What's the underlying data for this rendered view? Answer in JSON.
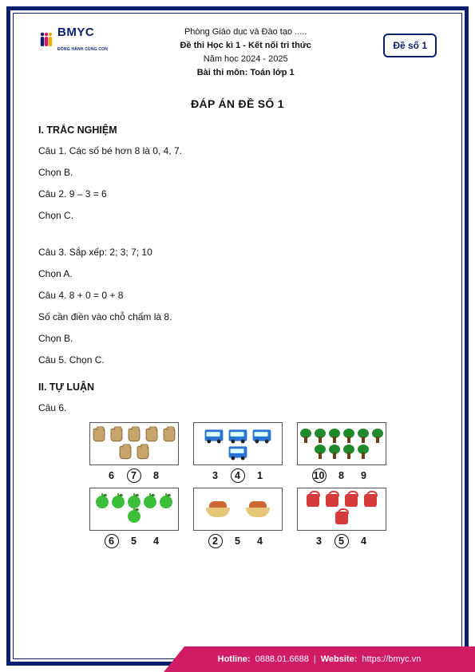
{
  "logo": {
    "brand": "BMYC",
    "tagline": "ĐỒNG HÀNH CÙNG CON"
  },
  "header": {
    "line1": "Phòng Giáo dục và Đào tạo .....",
    "line2": "Đề thi Học kì 1 - Kết nối tri thức",
    "line3": "Năm học 2024 - 2025",
    "line4": "Bài thi môn: Toán lớp 1"
  },
  "badge": "Đề số 1",
  "title": "ĐÁP ÁN ĐỀ SỐ 1",
  "section1": "I. TRẮC NGHIỆM",
  "q1": "Câu 1. Các số bé hơn 8 là 0, 4, 7.",
  "a1": "Chọn B.",
  "q2": "Câu 2. 9 – 3 = 6",
  "a2": "Chọn C.",
  "q3": "Câu 3. Sắp xếp: 2; 3; 7; 10",
  "a3": "Chọn A.",
  "q4": "Câu 4. 8 + 0 = 0 + 8",
  "q4b": "Số cần điền vào chỗ chấm là 8.",
  "a4": "Chọn B.",
  "q5": "Câu 5. Chọn C.",
  "section2": "II. TỰ LUẬN",
  "q6": "Câu 6.",
  "grid": {
    "cells": [
      {
        "kind": "sack",
        "count": 7,
        "nums": [
          "6",
          "7",
          "8"
        ],
        "answer_index": 1
      },
      {
        "kind": "van",
        "count": 4,
        "nums": [
          "3",
          "4",
          "1"
        ],
        "answer_index": 1
      },
      {
        "kind": "tree",
        "count": 10,
        "nums": [
          "10",
          "8",
          "9"
        ],
        "answer_index": 0
      },
      {
        "kind": "apple",
        "count": 6,
        "nums": [
          "6",
          "5",
          "4"
        ],
        "answer_index": 0
      },
      {
        "kind": "bowl",
        "count": 2,
        "nums": [
          "2",
          "5",
          "4"
        ],
        "answer_index": 0
      },
      {
        "kind": "bag",
        "count": 5,
        "nums": [
          "3",
          "5",
          "4"
        ],
        "answer_index": 1
      }
    ]
  },
  "footer": {
    "hotline_label": "Hotline:",
    "hotline": "0888.01.6688",
    "website_label": "Website:",
    "website": "https://bmyc.vn"
  },
  "colors": {
    "frame": "#0a1e6e",
    "accent": "#d01c66"
  }
}
